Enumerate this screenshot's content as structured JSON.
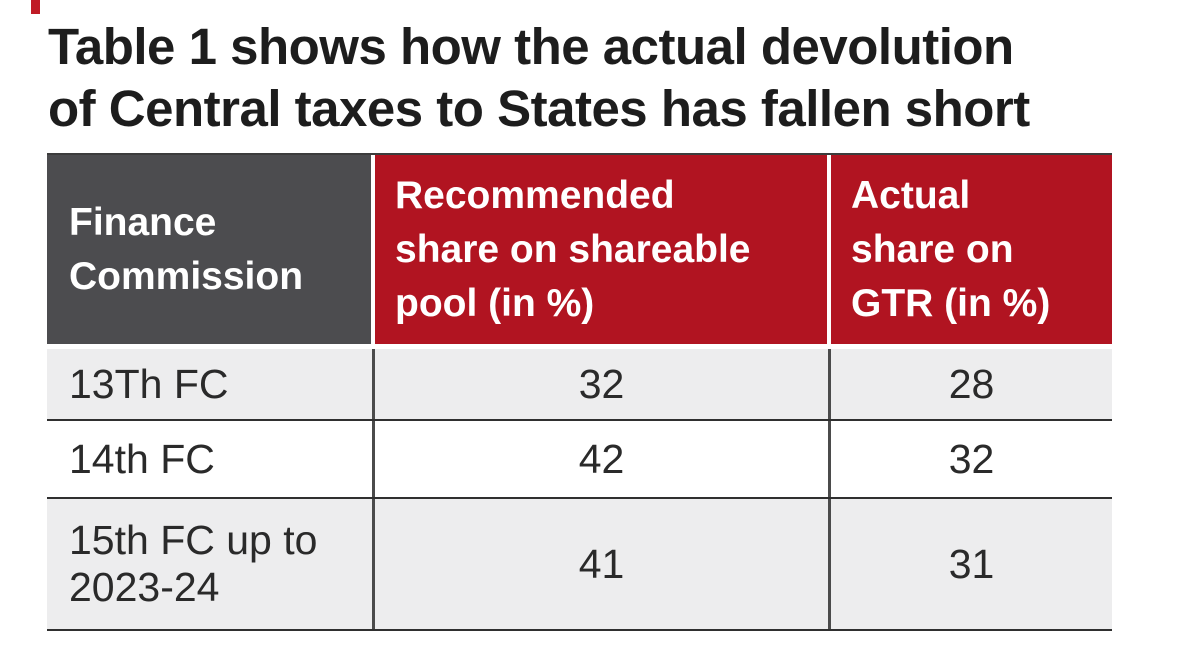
{
  "colors": {
    "accent_red": "#b11421",
    "header_gray": "#4c4c4f",
    "row_gray": "#ededee",
    "border_dark": "#2f2f2f",
    "dash_red": "#c01b26"
  },
  "title": "Table 1 shows how the actual devolution\nof Central taxes to States has fallen short",
  "table": {
    "headers": [
      "Finance\nCommission",
      "Recommended\nshare on shareable\npool (in %)",
      "Actual\nshare on\nGTR (in %)"
    ],
    "rows": [
      {
        "commission": "13Th FC",
        "recommended": "32",
        "actual": "28"
      },
      {
        "commission": "14th FC",
        "recommended": "42",
        "actual": "32"
      },
      {
        "commission": "15th FC up to\n2023-24",
        "recommended": "41",
        "actual": "31"
      }
    ]
  },
  "chart_data": {
    "type": "table",
    "title": "Table 1 shows how the actual devolution of Central taxes to States has fallen short",
    "columns": [
      "Finance Commission",
      "Recommended share on shareable pool (in %)",
      "Actual share on GTR (in %)"
    ],
    "rows": [
      [
        "13Th FC",
        32,
        28
      ],
      [
        "14th FC",
        42,
        32
      ],
      [
        "15th FC up to 2023-24",
        41,
        31
      ]
    ]
  }
}
